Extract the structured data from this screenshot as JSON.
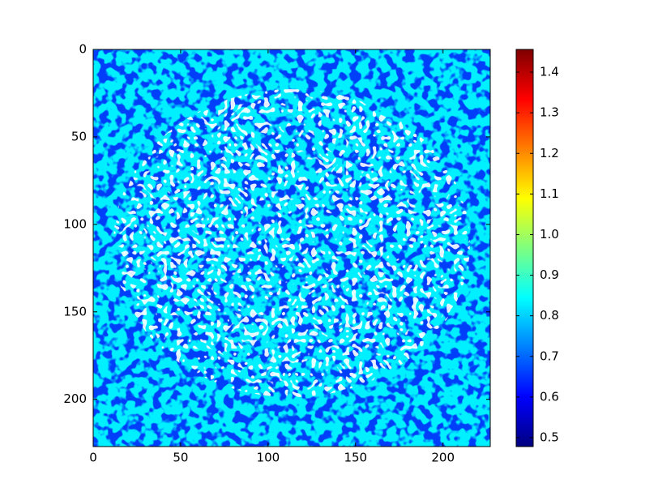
{
  "chart_data": {
    "type": "image",
    "xlim": [
      0,
      227
    ],
    "ylim": [
      227,
      0
    ],
    "xticks": [
      0,
      50,
      100,
      150,
      200
    ],
    "yticks": [
      0,
      50,
      100,
      150,
      200
    ],
    "colormap": "jet",
    "clim": [
      0.478,
      1.456
    ],
    "cticks": [
      0.5,
      0.6,
      0.7,
      0.8,
      0.9,
      {
        "value": 1,
        "label": "1.0"
      },
      1.1,
      1.2,
      1.3,
      1.4
    ]
  }
}
